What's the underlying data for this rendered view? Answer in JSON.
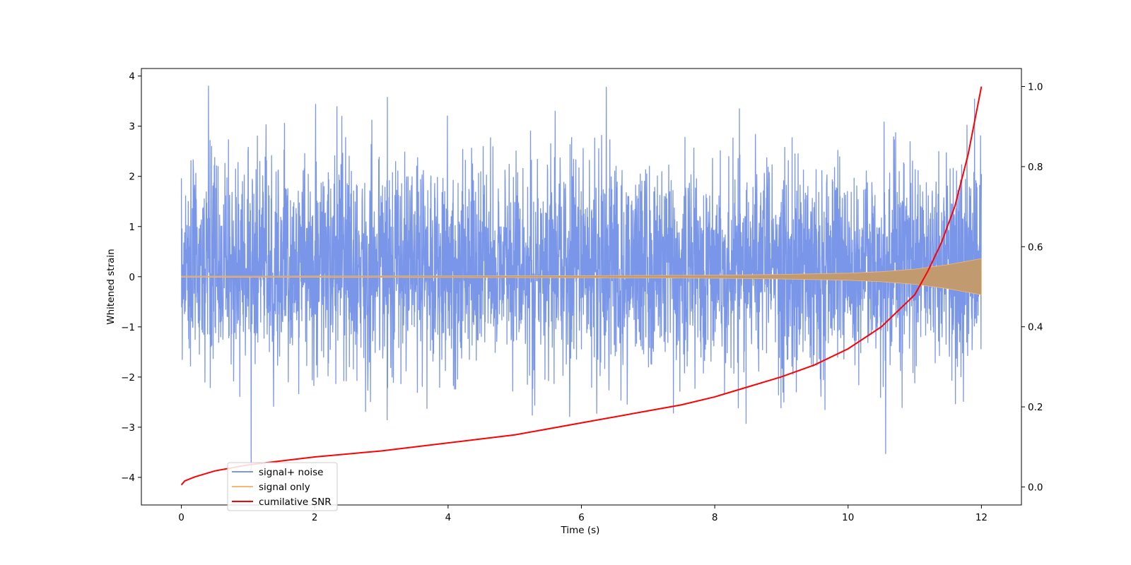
{
  "chart_data": {
    "type": "line",
    "title": "",
    "xlabel": "Time (s)",
    "ylabel": "Whitened strain",
    "y2label": "",
    "xlim": [
      -0.6,
      12.6
    ],
    "ylim": [
      -4.55,
      4.15
    ],
    "y2lim": [
      -0.045,
      1.045
    ],
    "x_ticks": [
      0,
      2,
      4,
      6,
      8,
      10,
      12
    ],
    "y_ticks": [
      -4,
      -3,
      -2,
      -1,
      0,
      1,
      2,
      3,
      4
    ],
    "y2_ticks": [
      0.0,
      0.2,
      0.4,
      0.6,
      0.8,
      1.0
    ],
    "x_tick_labels": [
      "0",
      "2",
      "4",
      "6",
      "8",
      "10",
      "12"
    ],
    "y_tick_labels": [
      "−4",
      "−3",
      "−2",
      "−1",
      "0",
      "1",
      "2",
      "3",
      "4"
    ],
    "y2_tick_labels": [
      "0.0",
      "0.2",
      "0.4",
      "0.6",
      "0.8",
      "1.0"
    ],
    "grid": false,
    "legend_position": "lower-left",
    "series": [
      {
        "name": "signal+ noise",
        "axis": "left",
        "color": "#7a96e8",
        "description_values": {
          "x_range": [
            0,
            12
          ],
          "noise_envelope": [
            -4.2,
            3.8
          ],
          "typical_band": [
            -1.8,
            2.3
          ]
        }
      },
      {
        "name": "signal only",
        "axis": "left",
        "color": "#f5b972",
        "amplitude_envelope": {
          "x": [
            0,
            2,
            4,
            6,
            8,
            9,
            10,
            10.5,
            11,
            11.5,
            12
          ],
          "amp": [
            0.01,
            0.012,
            0.015,
            0.02,
            0.03,
            0.045,
            0.07,
            0.1,
            0.15,
            0.24,
            0.36
          ]
        }
      },
      {
        "name": "cumilative SNR",
        "axis": "right",
        "color": "#ff0000",
        "x": [
          0,
          0.05,
          0.2,
          0.5,
          1,
          1.5,
          2,
          3,
          4,
          5,
          6,
          7,
          7.5,
          8,
          8.5,
          9,
          9.5,
          10,
          10.5,
          11,
          11.2,
          11.4,
          11.6,
          11.8,
          12
        ],
        "y": [
          0.005,
          0.015,
          0.025,
          0.04,
          0.055,
          0.065,
          0.075,
          0.09,
          0.11,
          0.13,
          0.16,
          0.19,
          0.205,
          0.225,
          0.25,
          0.275,
          0.305,
          0.345,
          0.4,
          0.48,
          0.54,
          0.61,
          0.7,
          0.83,
          1.0
        ]
      }
    ]
  }
}
